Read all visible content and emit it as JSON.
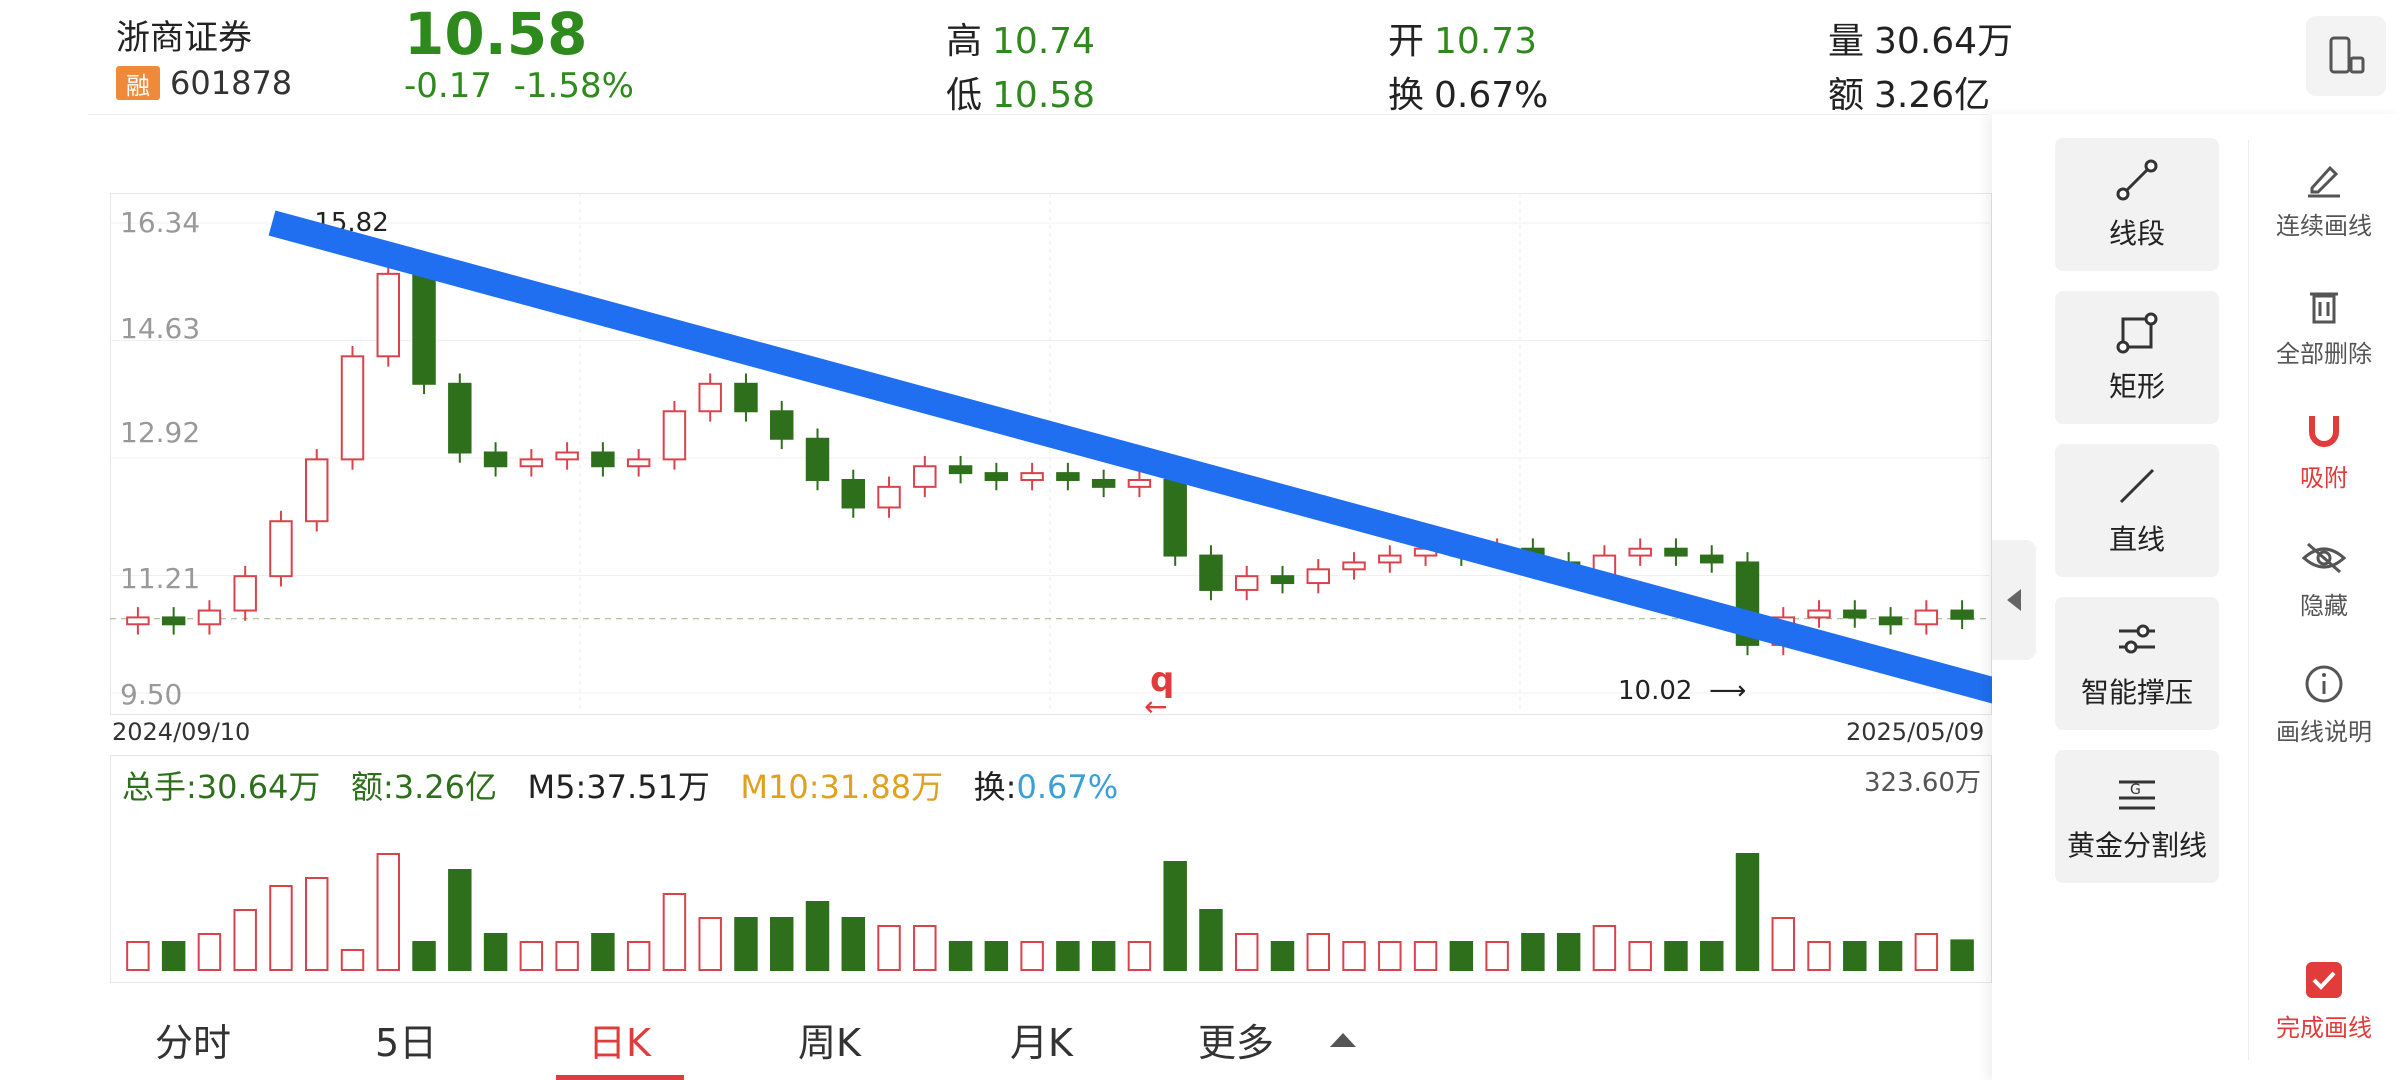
{
  "header": {
    "name": "浙商证券",
    "margin_badge": "融",
    "code": "601878",
    "price": "10.58",
    "change": "-0.17",
    "change_pct": "-1.58%",
    "high_label": "高",
    "high": "10.74",
    "low_label": "低",
    "low": "10.58",
    "open_label": "开",
    "open": "10.73",
    "turnover_label": "换",
    "turnover": "0.67%",
    "volume_label": "量",
    "volume": "30.64万",
    "amount_label": "额",
    "amount": "3.26亿"
  },
  "chart": {
    "y_ticks": [
      "16.34",
      "14.63",
      "12.92",
      "11.21",
      "9.50"
    ],
    "start_date": "2024/09/10",
    "end_date": "2025/05/09",
    "max_annotation": "15.82",
    "min_annotation": "10.02",
    "center_marker": "q",
    "colors": {
      "up": "#d9434b",
      "down": "#2e6f1c",
      "trendline": "#1f6ff0"
    }
  },
  "chart_data": {
    "type": "candlestick",
    "ylim": [
      9.5,
      16.34
    ],
    "y_ticks": [
      16.34,
      14.63,
      12.92,
      11.21,
      9.5
    ],
    "x_start": "2024/09/10",
    "x_end": "2025/05/09",
    "max_marker": 15.82,
    "min_marker": 10.02,
    "last_close": 10.58,
    "approx_close_path": [
      10.6,
      10.5,
      10.7,
      11.2,
      12.0,
      12.9,
      14.4,
      15.6,
      14.0,
      13.0,
      12.8,
      12.9,
      13.0,
      12.8,
      12.9,
      13.6,
      14.0,
      13.6,
      13.2,
      12.6,
      12.2,
      12.5,
      12.8,
      12.7,
      12.6,
      12.7,
      12.6,
      12.5,
      12.6,
      11.5,
      11.0,
      11.2,
      11.1,
      11.3,
      11.4,
      11.5,
      11.6,
      11.5,
      11.6,
      11.4,
      11.2,
      11.5,
      11.6,
      11.5,
      11.4,
      10.2,
      10.6,
      10.7,
      10.6,
      10.5,
      10.7,
      10.58
    ]
  },
  "volume": {
    "total_label": "总手:",
    "total": "30.64万",
    "amount_label": "额:",
    "amount": "3.26亿",
    "m5_label": "M5:",
    "m5": "37.51万",
    "m10_label": "M10:",
    "m10": "31.88万",
    "turnover_label": "换:",
    "turnover": "0.67%",
    "max": "323.60万"
  },
  "tabs": [
    "分时",
    "5日",
    "日K",
    "周K",
    "月K",
    "更多"
  ],
  "active_tab": "日K",
  "tools": [
    {
      "label": "线段",
      "icon": "segment-icon"
    },
    {
      "label": "矩形",
      "icon": "rectangle-icon"
    },
    {
      "label": "直线",
      "icon": "line-icon"
    },
    {
      "label": "智能撑压",
      "icon": "support-pressure-icon"
    },
    {
      "label": "黄金分割线",
      "icon": "golden-ratio-icon"
    }
  ],
  "side_actions": [
    {
      "label": "连续画线",
      "icon": "pencil-icon"
    },
    {
      "label": "全部删除",
      "icon": "trash-icon"
    },
    {
      "label": "吸附",
      "icon": "magnet-icon"
    },
    {
      "label": "隐藏",
      "icon": "eye-hidden-icon"
    },
    {
      "label": "画线说明",
      "icon": "info-icon"
    },
    {
      "label": "完成画线",
      "icon": "check-icon"
    }
  ]
}
